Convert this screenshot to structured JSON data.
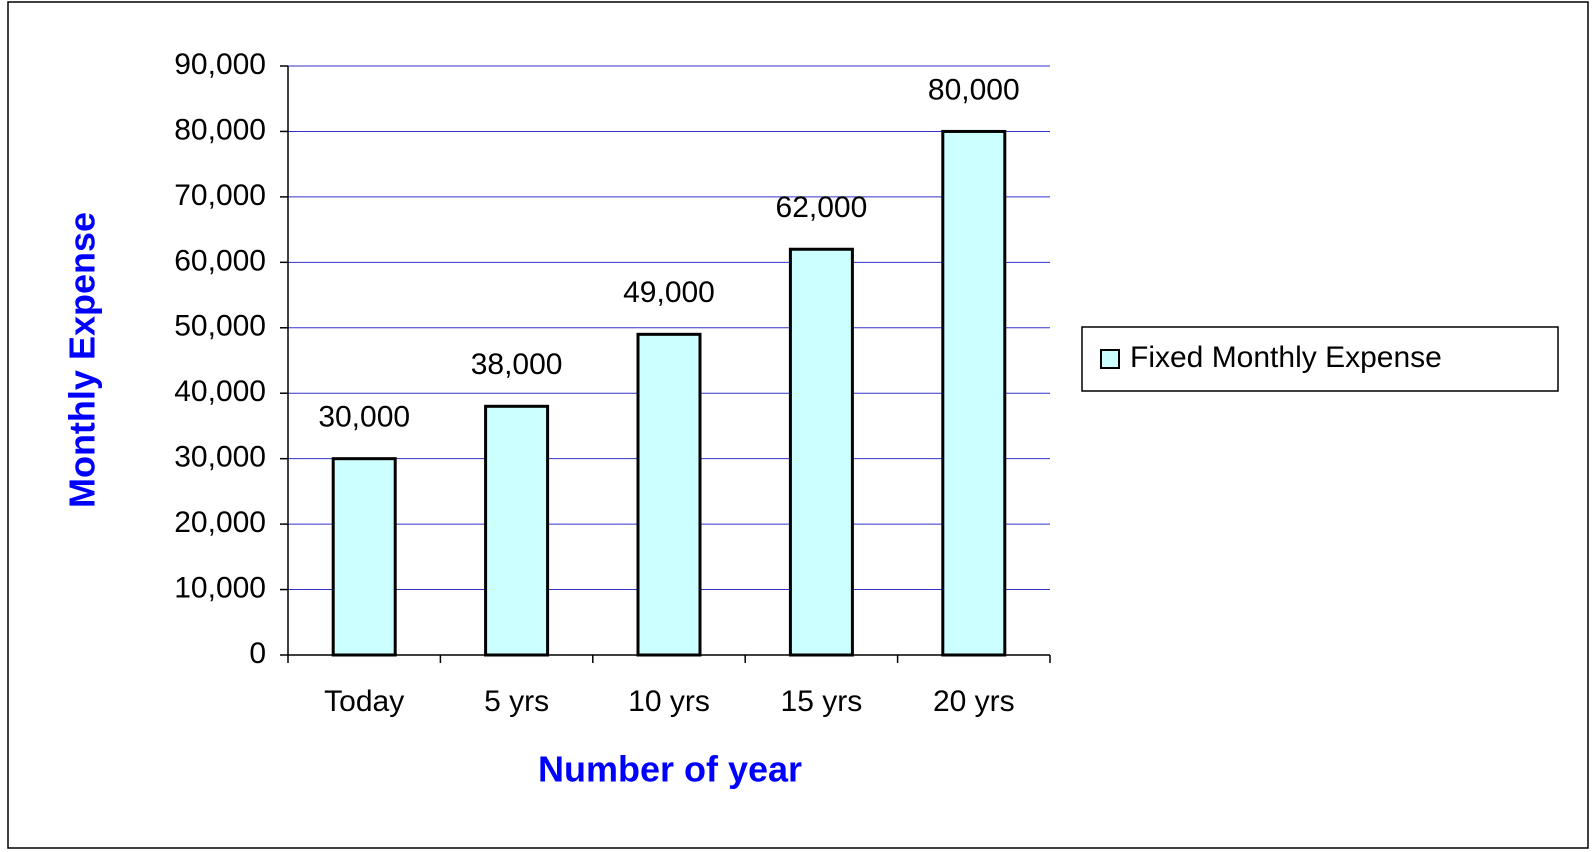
{
  "chart_data": {
    "type": "bar",
    "x_label": "Number of year",
    "y_label": "Monthly Expense",
    "categories": [
      "Today",
      "5 yrs",
      "10 yrs",
      "15 yrs",
      "20 yrs"
    ],
    "series": [
      {
        "name": "Fixed Monthly Expense",
        "color": "#ccffff",
        "values": [
          30000,
          38000,
          49000,
          62000,
          80000
        ],
        "value_labels": [
          "30,000",
          "38,000",
          "49,000",
          "62,000",
          "80,000"
        ]
      }
    ],
    "ylim": [
      0,
      90000
    ],
    "yticks": [
      0,
      {
        "value": 10000,
        "label": "10,000"
      },
      {
        "value": 20000,
        "label": "20,000"
      },
      {
        "value": 30000,
        "label": "30,000"
      },
      {
        "value": 40000,
        "label": "40,000"
      },
      {
        "value": 50000,
        "label": "50,000"
      },
      {
        "value": 60000,
        "label": "60,000"
      },
      {
        "value": 70000,
        "label": "70,000"
      },
      {
        "value": 80000,
        "label": "80,000"
      },
      {
        "value": 90000,
        "label": "90,000"
      }
    ],
    "grid": true,
    "grid_color": "#3333cc",
    "legend": "right"
  }
}
